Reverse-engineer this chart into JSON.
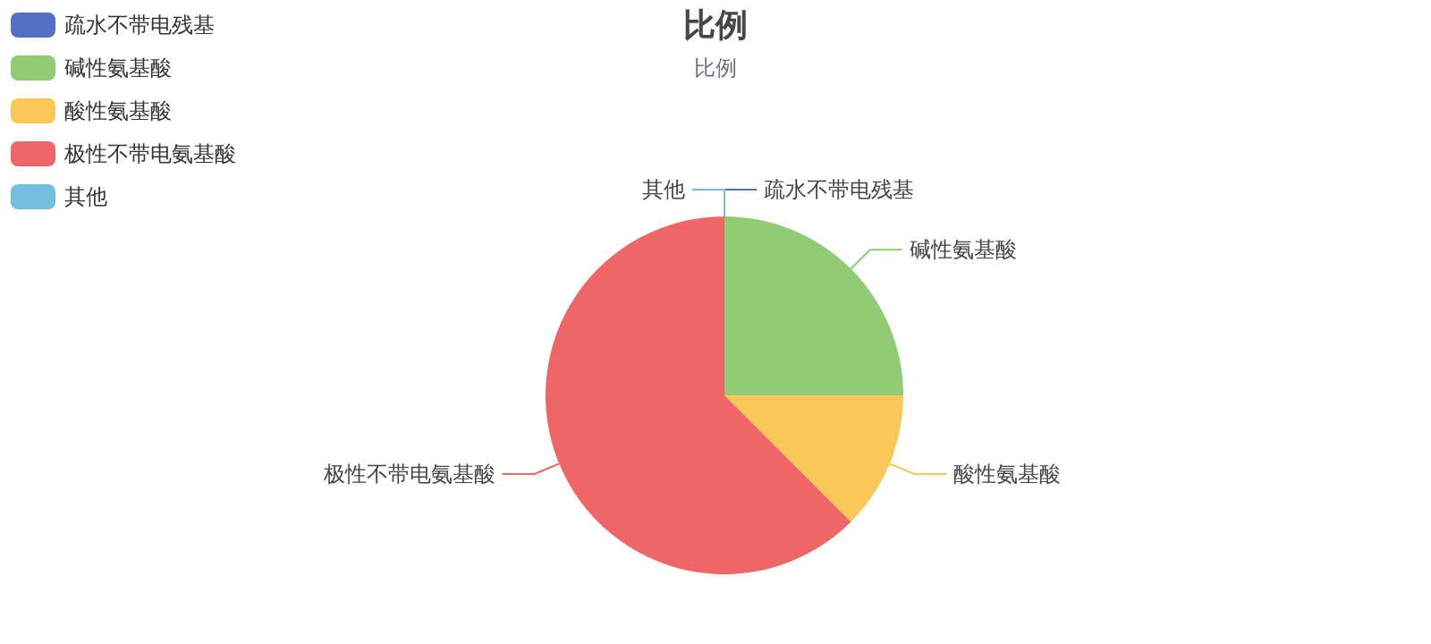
{
  "chart_data": {
    "type": "pie",
    "title": "比例",
    "subtitle": "比例",
    "categories": [
      "疏水不带电残基",
      "碱性氨基酸",
      "酸性氨基酸",
      "极性不带电氨基酸",
      "其他"
    ],
    "values": [
      0,
      25,
      12.5,
      62.5,
      0
    ],
    "colors": [
      "#5470c6",
      "#91cc75",
      "#fac858",
      "#ee6666",
      "#73c0de"
    ],
    "legend": "top left"
  }
}
